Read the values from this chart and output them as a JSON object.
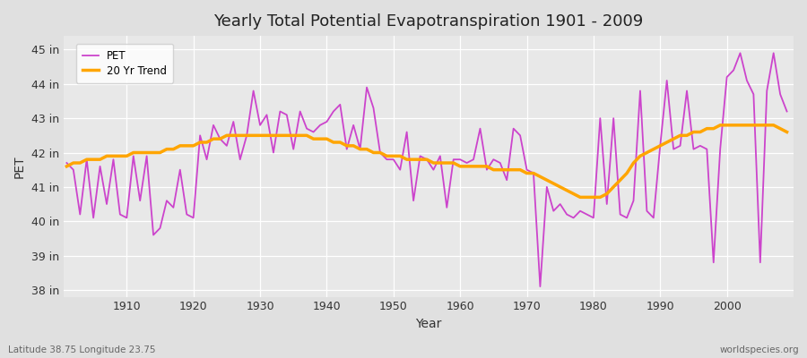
{
  "title": "Yearly Total Potential Evapotranspiration 1901 - 2009",
  "xlabel": "Year",
  "ylabel": "PET",
  "subtitle": "Latitude 38.75 Longitude 23.75",
  "watermark": "worldspecies.org",
  "pet_color": "#CC44CC",
  "trend_color": "#FFA500",
  "background_color": "#E0E0E0",
  "plot_bg_color": "#E8E8E8",
  "ylim": [
    37.8,
    45.4
  ],
  "xlim": [
    1900.5,
    2010
  ],
  "yticks": [
    38,
    39,
    40,
    41,
    42,
    43,
    44,
    45
  ],
  "ytick_labels": [
    "38 in",
    "39 in",
    "40 in",
    "41 in",
    "42 in",
    "43 in",
    "44 in",
    "45 in"
  ],
  "years": [
    1901,
    1902,
    1903,
    1904,
    1905,
    1906,
    1907,
    1908,
    1909,
    1910,
    1911,
    1912,
    1913,
    1914,
    1915,
    1916,
    1917,
    1918,
    1919,
    1920,
    1921,
    1922,
    1923,
    1924,
    1925,
    1926,
    1927,
    1928,
    1929,
    1930,
    1931,
    1932,
    1933,
    1934,
    1935,
    1936,
    1937,
    1938,
    1939,
    1940,
    1941,
    1942,
    1943,
    1944,
    1945,
    1946,
    1947,
    1948,
    1949,
    1950,
    1951,
    1952,
    1953,
    1954,
    1955,
    1956,
    1957,
    1958,
    1959,
    1960,
    1961,
    1962,
    1963,
    1964,
    1965,
    1966,
    1967,
    1968,
    1969,
    1970,
    1971,
    1972,
    1973,
    1974,
    1975,
    1976,
    1977,
    1978,
    1979,
    1980,
    1981,
    1982,
    1983,
    1984,
    1985,
    1986,
    1987,
    1988,
    1989,
    1990,
    1991,
    1992,
    1993,
    1994,
    1995,
    1996,
    1997,
    1998,
    1999,
    2000,
    2001,
    2002,
    2003,
    2004,
    2005,
    2006,
    2007,
    2008,
    2009
  ],
  "pet_values": [
    41.7,
    41.5,
    40.2,
    41.8,
    40.1,
    41.6,
    40.5,
    41.8,
    40.2,
    40.1,
    41.9,
    40.6,
    41.9,
    39.6,
    39.8,
    40.6,
    40.4,
    41.5,
    40.2,
    40.1,
    42.5,
    41.8,
    42.8,
    42.4,
    42.2,
    42.9,
    41.8,
    42.5,
    43.8,
    42.8,
    43.1,
    42.0,
    43.2,
    43.1,
    42.1,
    43.2,
    42.7,
    42.6,
    42.8,
    42.9,
    43.2,
    43.4,
    42.1,
    42.8,
    42.1,
    43.9,
    43.3,
    42.0,
    41.8,
    41.8,
    41.5,
    42.6,
    40.6,
    41.9,
    41.8,
    41.5,
    41.9,
    40.4,
    41.8,
    41.8,
    41.7,
    41.8,
    42.7,
    41.5,
    41.8,
    41.7,
    41.2,
    42.7,
    42.5,
    41.5,
    41.4,
    38.1,
    41.0,
    40.3,
    40.5,
    40.2,
    40.1,
    40.3,
    40.2,
    40.1,
    43.0,
    40.5,
    43.0,
    40.2,
    40.1,
    40.6,
    43.8,
    40.3,
    40.1,
    42.2,
    44.1,
    42.1,
    42.2,
    43.8,
    42.1,
    42.2,
    42.1,
    38.8,
    42.1,
    44.2,
    44.4,
    44.9,
    44.1,
    43.7,
    38.8,
    43.8,
    44.9,
    43.7,
    43.2
  ],
  "trend_values": [
    41.6,
    41.7,
    41.7,
    41.8,
    41.8,
    41.8,
    41.9,
    41.9,
    41.9,
    41.9,
    42.0,
    42.0,
    42.0,
    42.0,
    42.0,
    42.1,
    42.1,
    42.2,
    42.2,
    42.2,
    42.3,
    42.3,
    42.4,
    42.4,
    42.5,
    42.5,
    42.5,
    42.5,
    42.5,
    42.5,
    42.5,
    42.5,
    42.5,
    42.5,
    42.5,
    42.5,
    42.5,
    42.4,
    42.4,
    42.4,
    42.3,
    42.3,
    42.2,
    42.2,
    42.1,
    42.1,
    42.0,
    42.0,
    41.9,
    41.9,
    41.9,
    41.8,
    41.8,
    41.8,
    41.8,
    41.7,
    41.7,
    41.7,
    41.7,
    41.6,
    41.6,
    41.6,
    41.6,
    41.6,
    41.5,
    41.5,
    41.5,
    41.5,
    41.5,
    41.4,
    41.4,
    41.3,
    41.2,
    41.1,
    41.0,
    40.9,
    40.8,
    40.7,
    40.7,
    40.7,
    40.7,
    40.8,
    41.0,
    41.2,
    41.4,
    41.7,
    41.9,
    42.0,
    42.1,
    42.2,
    42.3,
    42.4,
    42.5,
    42.5,
    42.6,
    42.6,
    42.7,
    42.7,
    42.8,
    42.8,
    42.8,
    42.8,
    42.8,
    42.8,
    42.8,
    42.8,
    42.8,
    42.7,
    42.6
  ]
}
